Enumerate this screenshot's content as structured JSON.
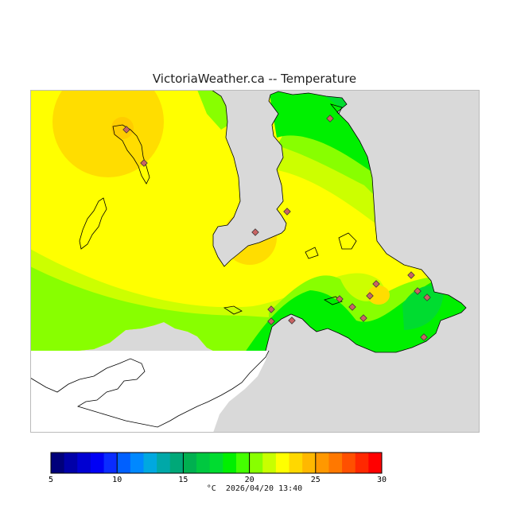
{
  "title": "VictoriaWeather.ca -- Temperature",
  "footer": {
    "unit": "°C",
    "timestamp": "2026/04/20 13:40"
  },
  "legend": {
    "min": 5,
    "max": 30,
    "step": 1,
    "ticks": [
      "5",
      "10",
      "15",
      "20",
      "25",
      "30"
    ],
    "colors": [
      "#00007a",
      "#0000a8",
      "#0000d2",
      "#0000f5",
      "#0a2cff",
      "#0060ff",
      "#0088ff",
      "#00a8e0",
      "#00a8a8",
      "#00a878",
      "#00b050",
      "#00c840",
      "#00dc30",
      "#00f000",
      "#44ff00",
      "#88ff00",
      "#c8ff00",
      "#ffff00",
      "#ffd800",
      "#ffb800",
      "#ff9800",
      "#ff7800",
      "#ff5000",
      "#ff2800",
      "#ff0000"
    ]
  },
  "map": {
    "colors": {
      "ocean": "#d9d9d9",
      "nodata": "#ffffff",
      "band_15_16": "#00dc30",
      "band_16_17": "#00f000",
      "band_17_18": "#88ff00",
      "band_18_19": "#ccff00",
      "band_19_20": "#ffff00",
      "band_20_21": "#ffdd00",
      "station": "#c86464"
    },
    "icons": [
      "station-marker-icon"
    ]
  }
}
